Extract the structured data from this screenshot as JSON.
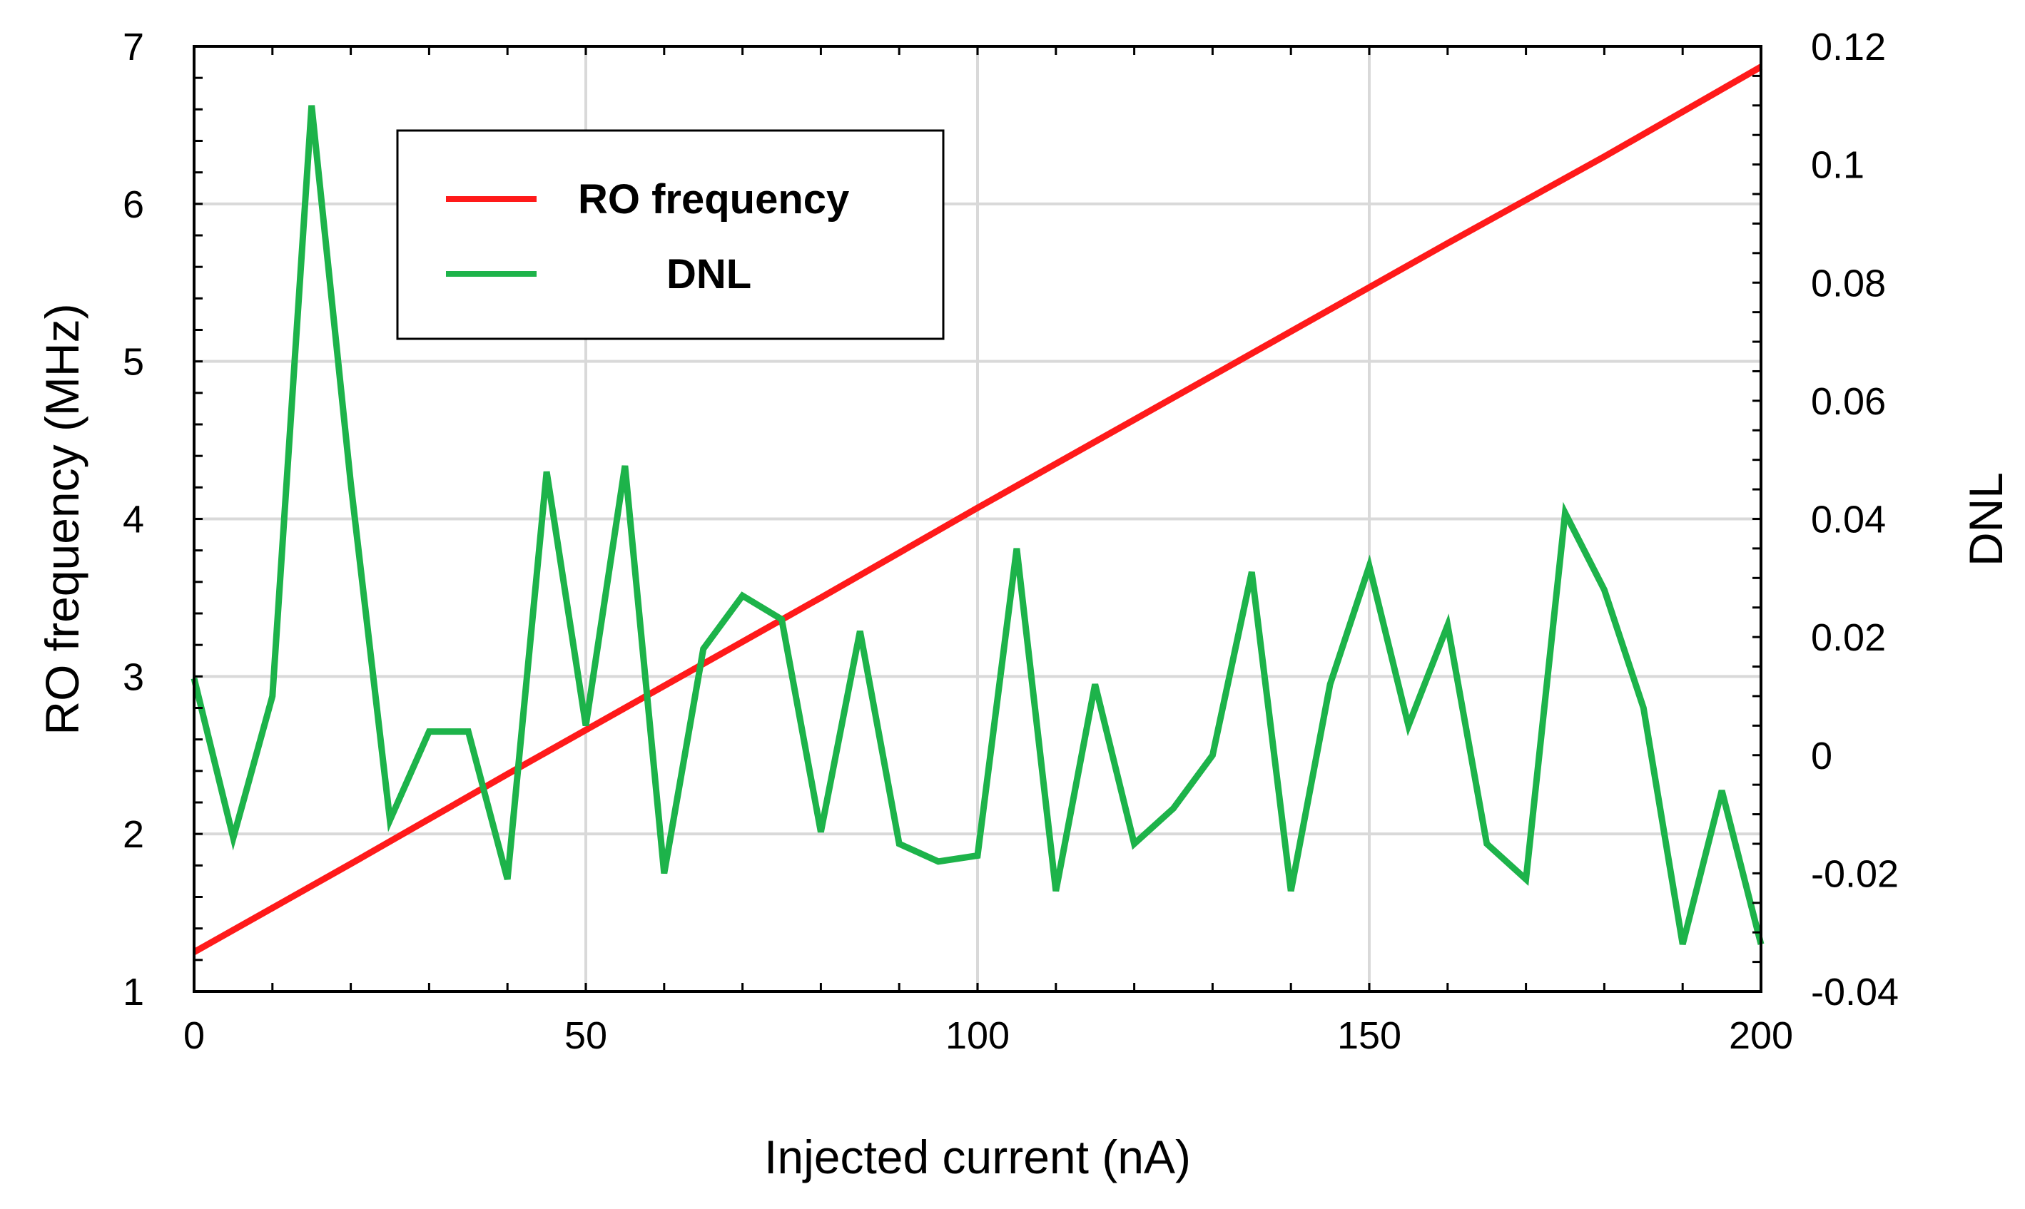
{
  "chart_data": {
    "type": "line",
    "title": "",
    "xlabel": "Injected current (nA)",
    "ylabel": "RO frequency (MHz)",
    "y2label": "DNL",
    "xlim": [
      0,
      200
    ],
    "ylim": [
      1,
      7
    ],
    "y2lim": [
      -0.04,
      0.12
    ],
    "grid": true,
    "legend_position": "top-left",
    "x_ticks": [
      "0",
      "50",
      "100",
      "150",
      "200"
    ],
    "y_ticks": [
      "1",
      "2",
      "3",
      "4",
      "5",
      "6",
      "7"
    ],
    "y2_ticks": [
      "-0.04",
      "-0.02",
      "0",
      "0.02",
      "0.04",
      "0.06",
      "0.08",
      "0.1",
      "0.12"
    ],
    "series": [
      {
        "name": "RO frequency",
        "axis": "left",
        "color": "#ff1a1a",
        "x": [
          0,
          20,
          40,
          60,
          80,
          100,
          120,
          140,
          160,
          180,
          200
        ],
        "values": [
          1.25,
          1.81,
          2.38,
          2.94,
          3.5,
          4.07,
          4.63,
          5.19,
          5.75,
          6.3,
          6.87
        ]
      },
      {
        "name": "DNL",
        "axis": "right",
        "color": "#1db34a",
        "x": [
          0,
          5,
          10,
          15,
          20,
          25,
          30,
          35,
          40,
          45,
          50,
          55,
          60,
          65,
          70,
          75,
          80,
          85,
          90,
          95,
          100,
          105,
          110,
          115,
          120,
          125,
          130,
          135,
          140,
          145,
          150,
          155,
          160,
          165,
          170,
          175,
          180,
          185,
          190,
          195,
          200
        ],
        "values": [
          0.013,
          -0.014,
          0.01,
          0.11,
          0.046,
          -0.011,
          0.004,
          0.004,
          -0.021,
          0.048,
          0.005,
          0.049,
          -0.02,
          0.018,
          0.027,
          0.023,
          -0.013,
          0.021,
          -0.015,
          -0.018,
          -0.017,
          0.035,
          -0.023,
          0.012,
          -0.015,
          -0.009,
          0.0,
          0.031,
          -0.023,
          0.012,
          0.032,
          0.005,
          0.022,
          -0.015,
          -0.021,
          0.041,
          0.028,
          0.008,
          -0.032,
          -0.006,
          -0.032
        ]
      }
    ]
  }
}
